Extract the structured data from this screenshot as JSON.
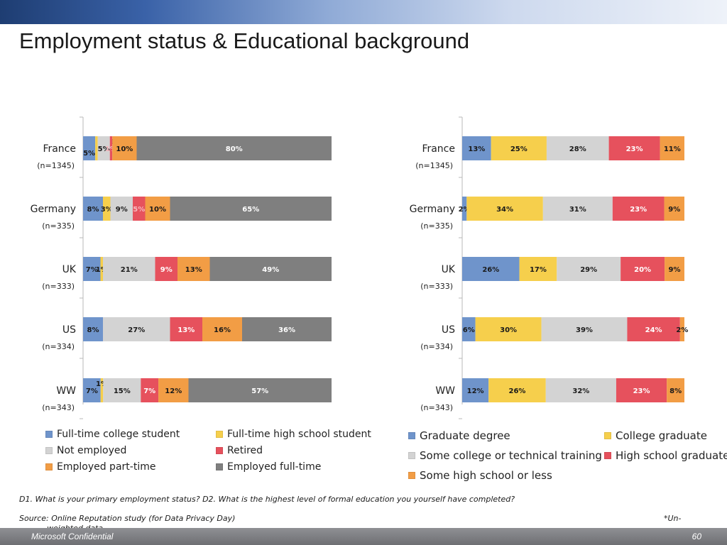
{
  "slide": {
    "title": "Employment status & Educational background",
    "question": "D1. What is your primary employment status? D2. What is the highest level of formal education you yourself have completed?",
    "source": "Source: Online Reputation study (for Data Privacy Day)",
    "note_part1": "*Un-",
    "note_part2": "weighted data",
    "footer_left": "Microsoft Confidential",
    "page_number": "60"
  },
  "chart_data": [
    {
      "type": "bar",
      "orientation": "horizontal",
      "stacked": true,
      "categories": [
        "France",
        "Germany",
        "UK",
        "US",
        "WW"
      ],
      "sample_sizes": [
        "(n=1345)",
        "(n=335)",
        "(n=333)",
        "(n=334)",
        "(n=343)"
      ],
      "series": [
        {
          "name": "Full-time college student",
          "color": "#6f94cb",
          "values": [
            5,
            8,
            7,
            8,
            7
          ]
        },
        {
          "name": "Full-time high school student",
          "color": "#f6cf4c",
          "values": [
            1,
            3,
            1,
            0,
            1
          ]
        },
        {
          "name": "Not employed",
          "color": "#d3d3d3",
          "values": [
            5,
            9,
            21,
            27,
            15
          ]
        },
        {
          "name": "Retired",
          "color": "#e6515d",
          "values": [
            1,
            5,
            9,
            13,
            7
          ]
        },
        {
          "name": "Employed part-time",
          "color": "#f29d45",
          "values": [
            10,
            10,
            13,
            16,
            12
          ]
        },
        {
          "name": "Employed full-time",
          "color": "#7f7f7f",
          "values": [
            80,
            65,
            49,
            36,
            57
          ]
        }
      ],
      "legend_columns": 2
    },
    {
      "type": "bar",
      "orientation": "horizontal",
      "stacked": true,
      "categories": [
        "France",
        "Germany",
        "UK",
        "US",
        "WW"
      ],
      "sample_sizes": [
        "(n=1345)",
        "(n=335)",
        "(n=333)",
        "(n=334)",
        "(n=343)"
      ],
      "series": [
        {
          "name": "Graduate degree",
          "color": "#6f94cb",
          "values": [
            13,
            2,
            26,
            6,
            12
          ]
        },
        {
          "name": "College graduate",
          "color": "#f6cf4c",
          "values": [
            25,
            34,
            17,
            30,
            26
          ]
        },
        {
          "name": "Some college or technical training",
          "color": "#d3d3d3",
          "values": [
            28,
            31,
            29,
            39,
            32
          ]
        },
        {
          "name": "High school graduate",
          "color": "#e6515d",
          "values": [
            23,
            23,
            20,
            24,
            23
          ]
        },
        {
          "name": "Some high school or less",
          "color": "#f29d45",
          "values": [
            11,
            9,
            9,
            2,
            8
          ]
        }
      ],
      "legend_columns": 2
    }
  ]
}
